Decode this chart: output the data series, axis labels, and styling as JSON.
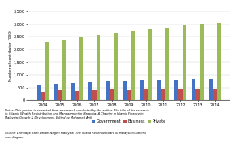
{
  "years": [
    2004,
    2005,
    2006,
    2007,
    2008,
    2009,
    2010,
    2011,
    2012,
    2013,
    2014
  ],
  "government": [
    620,
    660,
    680,
    720,
    740,
    760,
    785,
    805,
    820,
    840,
    855
  ],
  "business": [
    330,
    380,
    370,
    390,
    420,
    400,
    430,
    440,
    450,
    460,
    470
  ],
  "private": [
    2280,
    2380,
    2490,
    2570,
    2640,
    2720,
    2800,
    2870,
    2950,
    3020,
    3060
  ],
  "colors": {
    "government": "#4472C4",
    "business": "#C0504D",
    "private": "#9BBB59"
  },
  "ylabel": "Number of contributor ('000)",
  "ylim": [
    0,
    3500
  ],
  "yticks": [
    0,
    500,
    1000,
    1500,
    2000,
    2500,
    3000,
    3500
  ],
  "ytick_labels": [
    "0",
    "500",
    "1,000",
    "1,500",
    "2,000",
    "2,500",
    "3,000",
    "3,500"
  ],
  "legend_labels": [
    "Government",
    "Business",
    "Private"
  ],
  "notes_bold": "Notes:",
  "notes_rest": " This portion is extracted from a research conducted by the author. The title of the research\nis: Islamic Wealth Redistribution and Management in Malaysia: A Chapter in Islamic Finance in\nMalaysia: Growth & Development. Edited by Mohamed Ariff",
  "source_bold": "Source:",
  "source_rest": " Lembaga Hasil Dalam Negeri Malaysia (The Inland Revenue Board of Malaysia)/author's\nown diagram"
}
